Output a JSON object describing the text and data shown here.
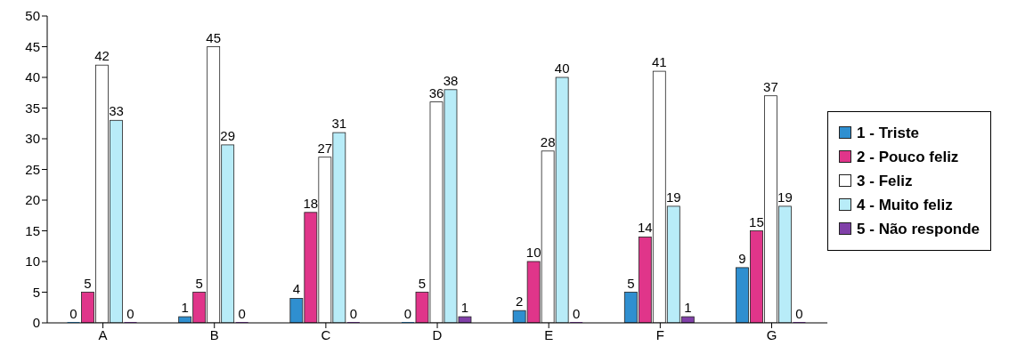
{
  "chart_data": {
    "type": "bar",
    "categories": [
      "A",
      "B",
      "C",
      "D",
      "E",
      "F",
      "G"
    ],
    "series": [
      {
        "name": "1 - Triste",
        "color": "#2f8fd0",
        "values": [
          0,
          1,
          4,
          0,
          2,
          5,
          9
        ]
      },
      {
        "name": "2 - Pouco feliz",
        "color": "#e0358a",
        "values": [
          5,
          5,
          18,
          5,
          10,
          14,
          15
        ]
      },
      {
        "name": "3 - Feliz",
        "color": "#ffffff",
        "values": [
          42,
          45,
          27,
          36,
          28,
          41,
          37
        ]
      },
      {
        "name": "4 - Muito feliz",
        "color": "#b8ecf8",
        "values": [
          33,
          29,
          31,
          38,
          40,
          19,
          19
        ]
      },
      {
        "name": "5 - Não responde",
        "color": "#8040a8",
        "values": [
          0,
          0,
          0,
          1,
          0,
          1,
          0
        ]
      }
    ],
    "ylim": [
      0,
      50
    ],
    "yticks": [
      0,
      5,
      10,
      15,
      20,
      25,
      30,
      35,
      40,
      45,
      50
    ],
    "grid": false,
    "legend": "right",
    "data_labels": true
  }
}
